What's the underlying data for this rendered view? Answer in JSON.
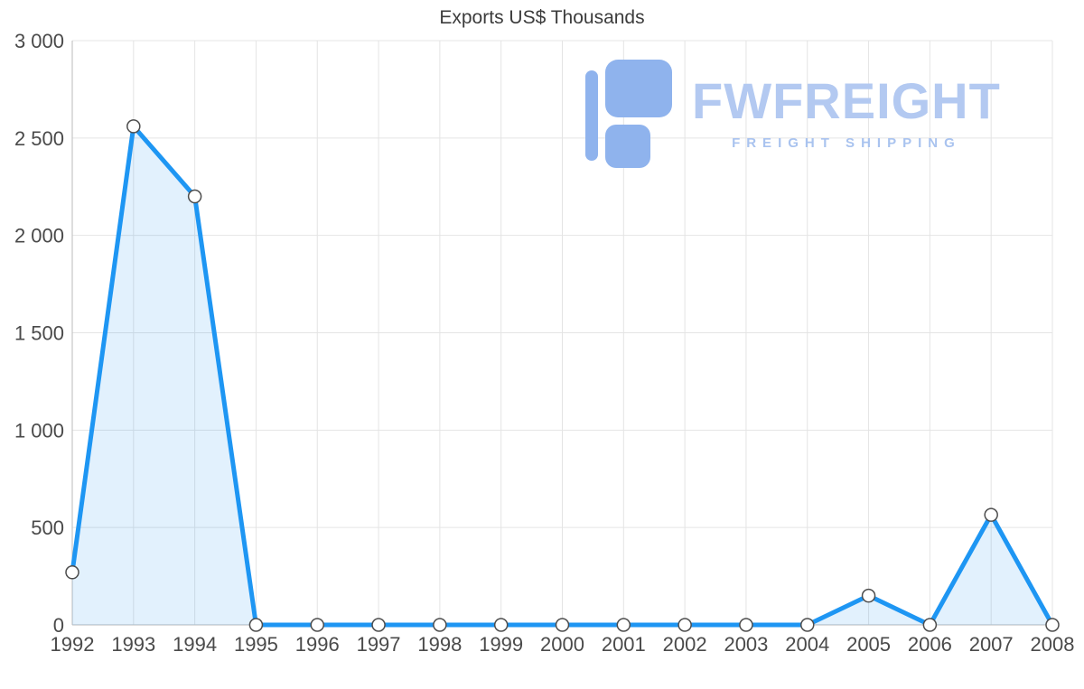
{
  "title": "Exports US$ Thousands",
  "watermark": {
    "brand": "FWFREIGHT",
    "tagline": "FREIGHT SHIPPING"
  },
  "colors": {
    "line": "#1E96F3",
    "area": "#1E96F3",
    "area_opacity": 0.13,
    "grid": "#E4E4E4",
    "axis": "#C6C6C6",
    "marker_fill": "#FFFFFF",
    "marker_stroke": "#4D4D4D",
    "tick_text": "#4A4A4A",
    "title_text": "#3C3C3C",
    "logo": "#8FB3ED",
    "logo_text": "#B3C9F1",
    "logo_tagline": "#A9C3EF"
  },
  "chart_data": {
    "type": "area",
    "title": "Exports US$ Thousands",
    "x": [
      1992,
      1993,
      1994,
      1995,
      1996,
      1997,
      1998,
      1999,
      2000,
      2001,
      2002,
      2003,
      2004,
      2005,
      2006,
      2007,
      2008
    ],
    "values": [
      270,
      2560,
      2200,
      0,
      0,
      0,
      0,
      0,
      0,
      0,
      0,
      0,
      0,
      150,
      0,
      565,
      0
    ],
    "xlabel": "",
    "ylabel": "",
    "ylim": [
      0,
      3000
    ],
    "ytick_interval": 500,
    "ytick_labels": [
      "0",
      "500",
      "1 000",
      "1 500",
      "2 000",
      "2 500",
      "3 000"
    ],
    "grid": true,
    "legend_position": "none",
    "markers": "white-circles"
  }
}
